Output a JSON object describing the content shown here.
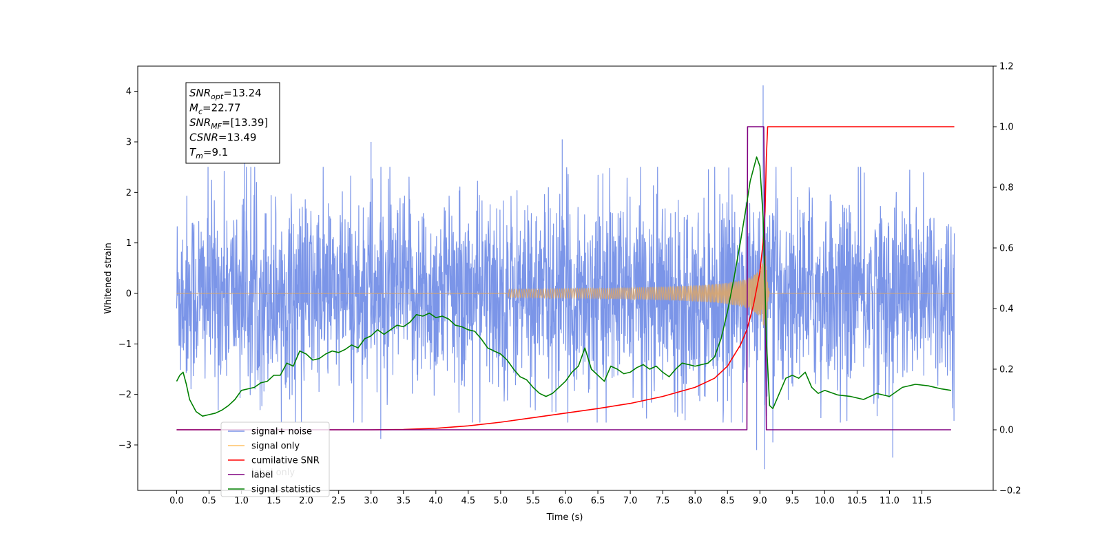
{
  "chart_data": {
    "type": "line",
    "title": "",
    "xlabel": "Time (s)",
    "ylabel": "Whitened strain",
    "xlim": [
      -0.6,
      12.6
    ],
    "ylim_left": [
      -3.9,
      4.5
    ],
    "ylim_right": [
      -0.2,
      1.2
    ],
    "x_ticks": [
      "0.0",
      "0.5",
      "1.0",
      "1.5",
      "2.0",
      "2.5",
      "3.0",
      "3.5",
      "4.0",
      "4.5",
      "5.0",
      "5.5",
      "6.0",
      "6.5",
      "7.0",
      "7.5",
      "8.0",
      "8.5",
      "9.0",
      "9.5",
      "10.0",
      "10.5",
      "11.0",
      "11.5"
    ],
    "y_ticks_left": [
      "−3",
      "−2",
      "−1",
      "0",
      "1",
      "2",
      "3",
      "4"
    ],
    "y_ticks_right": [
      "−0.2",
      "0.0",
      "0.2",
      "0.4",
      "0.6",
      "0.8",
      "1.0",
      "1.2"
    ],
    "grid": false,
    "annotation": {
      "lines": [
        {
          "sym": "SNR",
          "sub": "opt",
          "value": "=13.24"
        },
        {
          "sym": "M",
          "sub": "c",
          "value": "=22.77"
        },
        {
          "sym": "SNR",
          "sub": "MF",
          "value": "=[13.39]"
        },
        {
          "sym": "CSNR",
          "sub": "",
          "value": "=13.49"
        },
        {
          "sym": "T",
          "sub": "m",
          "value": "=9.1"
        }
      ]
    },
    "legend": {
      "placement": "lower-left",
      "entries": [
        {
          "label": "signal+ noise",
          "color": "#7893e8"
        },
        {
          "label": "signal only",
          "color": "#ffc266"
        },
        {
          "label": "cumilative SNR",
          "color": "#ff0000"
        },
        {
          "label": "label",
          "color": "#800080"
        },
        {
          "label": "signal statistics",
          "color": "#008000"
        }
      ],
      "hidden_behind": [
        "label only"
      ]
    },
    "series": [
      {
        "name": "signal+ noise",
        "axis": "left",
        "color": "#7893e8",
        "kind": "noise",
        "x_range": [
          0.0,
          12.0
        ],
        "typical_range": [
          -2.5,
          2.5
        ],
        "spikes": [
          {
            "x": 9.05,
            "y": 4.12
          },
          {
            "x": 9.07,
            "y": -3.48
          },
          {
            "x": 8.95,
            "y": -3.1
          },
          {
            "x": 9.2,
            "y": -2.95
          },
          {
            "x": 11.05,
            "y": -3.25
          },
          {
            "x": 3.15,
            "y": -2.88
          },
          {
            "x": 5.95,
            "y": 3.05
          },
          {
            "x": 1.05,
            "y": 2.85
          },
          {
            "x": 3.0,
            "y": 3.0
          }
        ]
      },
      {
        "name": "signal only",
        "axis": "left",
        "color": "#d9a56b",
        "kind": "chirp",
        "x_range": [
          0.0,
          12.0
        ],
        "merger": 9.1,
        "peak_amplitude": 0.75
      },
      {
        "name": "cumilative SNR",
        "axis": "right",
        "color": "#ff0000",
        "x": [
          0.0,
          3.0,
          3.5,
          4.0,
          4.5,
          5.0,
          5.5,
          6.0,
          6.5,
          7.0,
          7.5,
          8.0,
          8.3,
          8.5,
          8.7,
          8.8,
          8.9,
          9.0,
          9.05,
          9.08,
          9.1,
          9.12,
          12.0
        ],
        "values": [
          0.0,
          0.0,
          0.001,
          0.005,
          0.013,
          0.025,
          0.04,
          0.055,
          0.07,
          0.087,
          0.11,
          0.14,
          0.17,
          0.21,
          0.28,
          0.33,
          0.41,
          0.52,
          0.62,
          0.72,
          0.9,
          1.0,
          1.0
        ]
      },
      {
        "name": "label",
        "axis": "right",
        "color": "#800080",
        "x": [
          0.0,
          8.8,
          8.81,
          9.06,
          9.1,
          11.95
        ],
        "values": [
          0.0,
          0.0,
          1.0,
          1.0,
          0.0,
          0.0
        ]
      },
      {
        "name": "signal statistics",
        "axis": "right",
        "color": "#008000",
        "x": [
          0.0,
          0.05,
          0.1,
          0.15,
          0.2,
          0.3,
          0.4,
          0.5,
          0.6,
          0.7,
          0.8,
          0.9,
          1.0,
          1.1,
          1.2,
          1.3,
          1.4,
          1.5,
          1.6,
          1.7,
          1.8,
          1.9,
          2.0,
          2.1,
          2.2,
          2.3,
          2.4,
          2.5,
          2.6,
          2.7,
          2.8,
          2.9,
          3.0,
          3.1,
          3.2,
          3.3,
          3.4,
          3.5,
          3.6,
          3.7,
          3.8,
          3.9,
          4.0,
          4.1,
          4.2,
          4.3,
          4.4,
          4.5,
          4.6,
          4.7,
          4.8,
          4.9,
          5.0,
          5.1,
          5.2,
          5.3,
          5.4,
          5.5,
          5.6,
          5.7,
          5.8,
          5.9,
          6.0,
          6.1,
          6.2,
          6.3,
          6.4,
          6.5,
          6.6,
          6.7,
          6.8,
          6.9,
          7.0,
          7.1,
          7.2,
          7.3,
          7.4,
          7.5,
          7.6,
          7.7,
          7.8,
          7.9,
          8.0,
          8.1,
          8.2,
          8.3,
          8.4,
          8.5,
          8.6,
          8.7,
          8.8,
          8.85,
          8.9,
          8.95,
          9.0,
          9.05,
          9.1,
          9.15,
          9.2,
          9.3,
          9.4,
          9.5,
          9.6,
          9.7,
          9.8,
          9.9,
          10.0,
          10.2,
          10.4,
          10.6,
          10.8,
          11.0,
          11.2,
          11.4,
          11.6,
          11.8,
          11.95
        ],
        "values": [
          0.16,
          0.18,
          0.19,
          0.15,
          0.1,
          0.06,
          0.045,
          0.05,
          0.055,
          0.065,
          0.08,
          0.1,
          0.13,
          0.135,
          0.14,
          0.155,
          0.16,
          0.18,
          0.18,
          0.22,
          0.21,
          0.26,
          0.25,
          0.23,
          0.235,
          0.25,
          0.26,
          0.255,
          0.265,
          0.28,
          0.27,
          0.3,
          0.31,
          0.33,
          0.315,
          0.33,
          0.345,
          0.34,
          0.355,
          0.38,
          0.375,
          0.385,
          0.37,
          0.375,
          0.365,
          0.345,
          0.34,
          0.33,
          0.325,
          0.3,
          0.27,
          0.26,
          0.25,
          0.23,
          0.2,
          0.175,
          0.165,
          0.14,
          0.12,
          0.11,
          0.12,
          0.14,
          0.16,
          0.19,
          0.21,
          0.27,
          0.2,
          0.18,
          0.16,
          0.21,
          0.2,
          0.185,
          0.19,
          0.205,
          0.215,
          0.2,
          0.21,
          0.19,
          0.175,
          0.2,
          0.22,
          0.215,
          0.21,
          0.215,
          0.22,
          0.24,
          0.3,
          0.39,
          0.5,
          0.62,
          0.75,
          0.82,
          0.86,
          0.9,
          0.87,
          0.7,
          0.3,
          0.08,
          0.07,
          0.12,
          0.17,
          0.18,
          0.17,
          0.19,
          0.14,
          0.12,
          0.13,
          0.115,
          0.11,
          0.1,
          0.12,
          0.11,
          0.14,
          0.15,
          0.145,
          0.135,
          0.13
        ]
      }
    ]
  }
}
